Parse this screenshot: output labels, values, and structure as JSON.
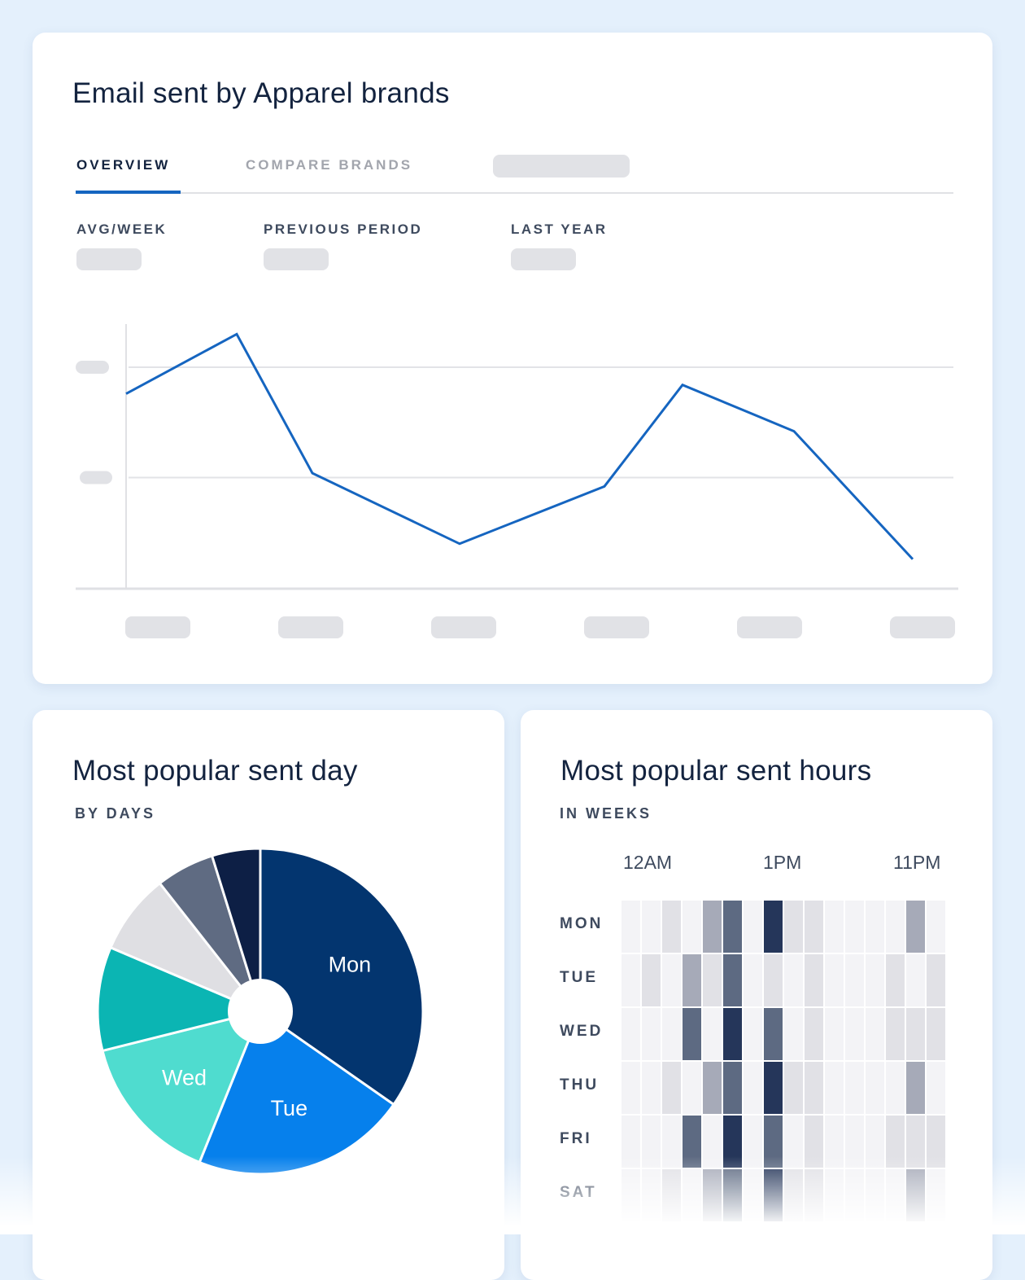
{
  "line_card": {
    "title": "Email sent by Apparel brands",
    "tabs": [
      {
        "label": "OVERVIEW",
        "active": true
      },
      {
        "label": "COMPARE BRANDS",
        "active": false
      }
    ],
    "stats": [
      {
        "label": "AVG/WEEK"
      },
      {
        "label": "PREVIOUS PERIOD"
      },
      {
        "label": "LAST YEAR"
      }
    ]
  },
  "pie_card": {
    "title": "Most popular sent day",
    "subtitle": "BY DAYS"
  },
  "heat_card": {
    "title": "Most popular sent hours",
    "subtitle": "IN WEEKS",
    "hour_labels": [
      "12AM",
      "1PM",
      "11PM"
    ],
    "day_labels": [
      "MON",
      "TUE",
      "WED",
      "THU",
      "FRI",
      "SAT"
    ]
  },
  "chart_data": [
    {
      "type": "line",
      "title": "Email sent by Apparel brands",
      "x_tick_labels_hidden": true,
      "y_tick_labels_hidden": true,
      "grid": true,
      "values": [
        1.76,
        2.3,
        1.04,
        0.4,
        0.92,
        1.84,
        1.42,
        0.26
      ],
      "ylim": [
        0,
        2.4
      ],
      "color": "#1565c0"
    },
    {
      "type": "pie",
      "title": "Most popular sent day",
      "slices": [
        {
          "label": "Mon",
          "value": 34.7,
          "color": "#03356f"
        },
        {
          "label": "Tue",
          "value": 21.4,
          "color": "#0680ec"
        },
        {
          "label": "Wed",
          "value": 15.0,
          "color": "#4fdccf"
        },
        {
          "label": "",
          "value": 10.3,
          "color": "#0bb5b3"
        },
        {
          "label": "",
          "value": 8.0,
          "color": "#dfdfe3"
        },
        {
          "label": "",
          "value": 5.8,
          "color": "#5f6b82"
        },
        {
          "label": "",
          "value": 4.8,
          "color": "#0d1f45"
        }
      ]
    },
    {
      "type": "heatmap",
      "title": "Most popular sent hours",
      "rows": [
        "MON",
        "TUE",
        "WED",
        "THU",
        "FRI",
        "SAT"
      ],
      "x_labels": [
        "12AM",
        "1PM",
        "11PM"
      ],
      "levels": [
        [
          0,
          0,
          1,
          0,
          2,
          3,
          0,
          4,
          1,
          1,
          0,
          0,
          0,
          0,
          2,
          0
        ],
        [
          0,
          1,
          0,
          2,
          1,
          3,
          0,
          1,
          0,
          1,
          0,
          0,
          0,
          1,
          0,
          1
        ],
        [
          0,
          0,
          0,
          3,
          0,
          4,
          0,
          3,
          0,
          1,
          0,
          0,
          0,
          1,
          1,
          1
        ],
        [
          0,
          0,
          1,
          0,
          2,
          3,
          0,
          4,
          1,
          1,
          0,
          0,
          0,
          0,
          2,
          0
        ],
        [
          0,
          0,
          0,
          3,
          0,
          4,
          0,
          3,
          0,
          1,
          0,
          0,
          0,
          1,
          1,
          1
        ],
        [
          0,
          0,
          1,
          0,
          2,
          3,
          0,
          4,
          1,
          1,
          0,
          0,
          0,
          0,
          2,
          0
        ]
      ],
      "level_colors": [
        "#f3f3f6",
        "#e1e1e6",
        "#a6aab8",
        "#5d6a82",
        "#25365a"
      ]
    }
  ]
}
